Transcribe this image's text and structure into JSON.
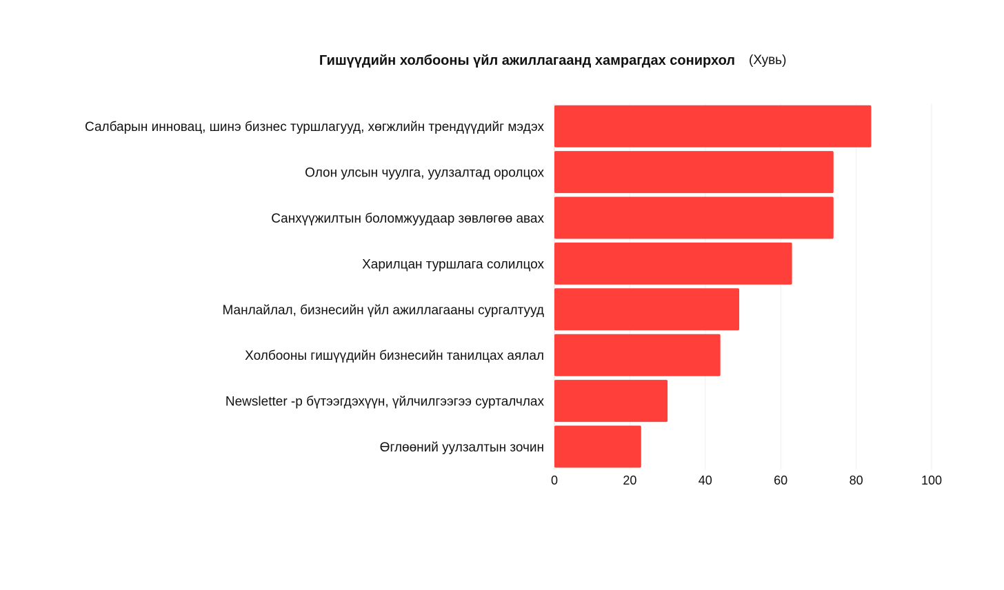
{
  "chart_data": {
    "type": "bar",
    "orientation": "horizontal",
    "title": "Гишүүдийн холбооны үйл ажиллагаанд хамрагдах сонирхол",
    "subtitle": "(Хувь)",
    "xlabel": "",
    "ylabel": "",
    "xlim": [
      0,
      100
    ],
    "x_ticks": [
      0,
      20,
      40,
      60,
      80,
      100
    ],
    "grid": true,
    "legend": "none",
    "bar_color": "#ff3f3a",
    "categories": [
      "Салбарын инновац, шинэ бизнес туршлагууд, хөгжлийн трендүүдийг мэдэх",
      "Олон улсын чуулга, уулзалтад оролцох",
      "Санхүүжилтын боломжуудаар зөвлөгөө авах",
      "Харилцан туршлага солилцох",
      "Манлайлал, бизнесийн үйл ажиллагааны сургалтууд",
      "Холбооны гишүүдийн бизнесийн танилцах аялал",
      "Newsletter -р бүтээгдэхүүн, үйлчилгээгээ сурталчлах",
      "Өглөөний уулзалтын зочин"
    ],
    "values": [
      84,
      74,
      74,
      63,
      49,
      44,
      30,
      23
    ]
  }
}
